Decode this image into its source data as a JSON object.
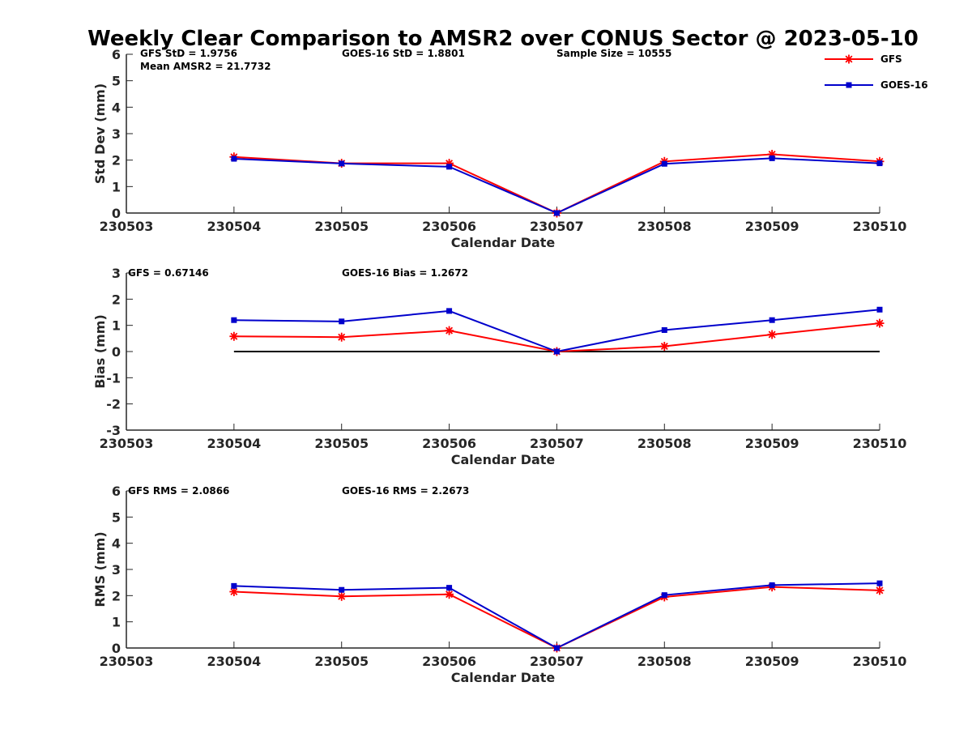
{
  "title": "Weekly Clear Comparison to AMSR2 over CONUS Sector @ 2023-05-10",
  "legend": {
    "placement": "top-right",
    "items": [
      {
        "label": "GFS",
        "color": "#ff0000",
        "marker": "asterisk"
      },
      {
        "label": "GOES-16",
        "color": "#0000cc",
        "marker": "square"
      }
    ]
  },
  "chart_data": [
    {
      "type": "line",
      "xlabel": "Calendar Date",
      "ylabel": "Std Dev (mm)",
      "ylim": [
        0,
        6
      ],
      "yticks": [
        "0",
        "1",
        "2",
        "3",
        "4",
        "5",
        "6"
      ],
      "categories": [
        "230503",
        "230504",
        "230505",
        "230506",
        "230507",
        "230508",
        "230509",
        "230510"
      ],
      "annotations": [
        "GFS StD = 1.9756",
        "GOES-16 StD = 1.8801",
        "Sample Size = 10555",
        "Mean AMSR2 = 21.7732"
      ],
      "series": [
        {
          "name": "GFS",
          "color": "#ff0000",
          "values": [
            null,
            2.12,
            1.88,
            1.88,
            0.0,
            1.95,
            2.22,
            1.95
          ]
        },
        {
          "name": "GOES-16",
          "color": "#0000cc",
          "values": [
            null,
            2.05,
            1.87,
            1.75,
            0.0,
            1.86,
            2.07,
            1.88
          ]
        }
      ],
      "reference_line": null
    },
    {
      "type": "line",
      "xlabel": "Calendar Date",
      "ylabel": "Bias (mm)",
      "ylim": [
        -3,
        3
      ],
      "yticks": [
        "-3",
        "-2",
        "-1",
        "0",
        "1",
        "2",
        "3"
      ],
      "categories": [
        "230503",
        "230504",
        "230505",
        "230506",
        "230507",
        "230508",
        "230509",
        "230510"
      ],
      "annotations": [
        "GFS = 0.67146",
        "GOES-16 Bias  = 1.2672"
      ],
      "series": [
        {
          "name": "GFS",
          "color": "#ff0000",
          "values": [
            null,
            0.58,
            0.55,
            0.8,
            0.0,
            0.2,
            0.65,
            1.08
          ]
        },
        {
          "name": "GOES-16",
          "color": "#0000cc",
          "values": [
            null,
            1.2,
            1.15,
            1.55,
            0.0,
            0.82,
            1.2,
            1.6
          ]
        }
      ],
      "reference_line": {
        "y": 0,
        "from": 1,
        "to": 7,
        "color": "#000000"
      }
    },
    {
      "type": "line",
      "xlabel": "Calendar Date",
      "ylabel": "RMS (mm)",
      "ylim": [
        0,
        6
      ],
      "yticks": [
        "0",
        "1",
        "2",
        "3",
        "4",
        "5",
        "6"
      ],
      "categories": [
        "230503",
        "230504",
        "230505",
        "230506",
        "230507",
        "230508",
        "230509",
        "230510"
      ],
      "annotations": [
        "GFS RMS = 2.0866",
        "GOES-16 RMS = 2.2673"
      ],
      "series": [
        {
          "name": "GFS",
          "color": "#ff0000",
          "values": [
            null,
            2.15,
            1.97,
            2.05,
            0.0,
            1.95,
            2.33,
            2.2
          ]
        },
        {
          "name": "GOES-16",
          "color": "#0000cc",
          "values": [
            null,
            2.37,
            2.22,
            2.3,
            0.0,
            2.02,
            2.4,
            2.47
          ]
        }
      ],
      "reference_line": null
    }
  ]
}
